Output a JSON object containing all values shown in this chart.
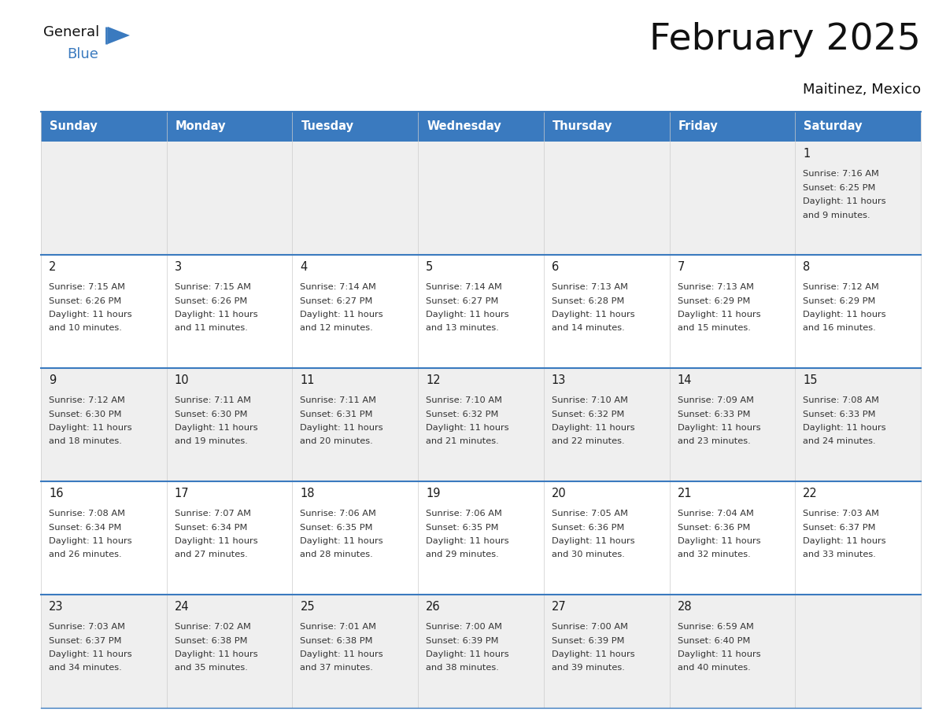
{
  "title": "February 2025",
  "subtitle": "Maitinez, Mexico",
  "header_bg_color": "#3a7abf",
  "header_text_color": "#ffffff",
  "cell_bg_odd": "#efefef",
  "cell_bg_even": "#ffffff",
  "border_color": "#3a7abf",
  "text_color": "#333333",
  "day_num_color": "#1a1a1a",
  "day_headers": [
    "Sunday",
    "Monday",
    "Tuesday",
    "Wednesday",
    "Thursday",
    "Friday",
    "Saturday"
  ],
  "weeks": [
    [
      {
        "day": null,
        "sunrise": null,
        "sunset": null,
        "daylight": null
      },
      {
        "day": null,
        "sunrise": null,
        "sunset": null,
        "daylight": null
      },
      {
        "day": null,
        "sunrise": null,
        "sunset": null,
        "daylight": null
      },
      {
        "day": null,
        "sunrise": null,
        "sunset": null,
        "daylight": null
      },
      {
        "day": null,
        "sunrise": null,
        "sunset": null,
        "daylight": null
      },
      {
        "day": null,
        "sunrise": null,
        "sunset": null,
        "daylight": null
      },
      {
        "day": 1,
        "sunrise": "7:16 AM",
        "sunset": "6:25 PM",
        "daylight": "11 hours and 9 minutes."
      }
    ],
    [
      {
        "day": 2,
        "sunrise": "7:15 AM",
        "sunset": "6:26 PM",
        "daylight": "11 hours and 10 minutes."
      },
      {
        "day": 3,
        "sunrise": "7:15 AM",
        "sunset": "6:26 PM",
        "daylight": "11 hours and 11 minutes."
      },
      {
        "day": 4,
        "sunrise": "7:14 AM",
        "sunset": "6:27 PM",
        "daylight": "11 hours and 12 minutes."
      },
      {
        "day": 5,
        "sunrise": "7:14 AM",
        "sunset": "6:27 PM",
        "daylight": "11 hours and 13 minutes."
      },
      {
        "day": 6,
        "sunrise": "7:13 AM",
        "sunset": "6:28 PM",
        "daylight": "11 hours and 14 minutes."
      },
      {
        "day": 7,
        "sunrise": "7:13 AM",
        "sunset": "6:29 PM",
        "daylight": "11 hours and 15 minutes."
      },
      {
        "day": 8,
        "sunrise": "7:12 AM",
        "sunset": "6:29 PM",
        "daylight": "11 hours and 16 minutes."
      }
    ],
    [
      {
        "day": 9,
        "sunrise": "7:12 AM",
        "sunset": "6:30 PM",
        "daylight": "11 hours and 18 minutes."
      },
      {
        "day": 10,
        "sunrise": "7:11 AM",
        "sunset": "6:30 PM",
        "daylight": "11 hours and 19 minutes."
      },
      {
        "day": 11,
        "sunrise": "7:11 AM",
        "sunset": "6:31 PM",
        "daylight": "11 hours and 20 minutes."
      },
      {
        "day": 12,
        "sunrise": "7:10 AM",
        "sunset": "6:32 PM",
        "daylight": "11 hours and 21 minutes."
      },
      {
        "day": 13,
        "sunrise": "7:10 AM",
        "sunset": "6:32 PM",
        "daylight": "11 hours and 22 minutes."
      },
      {
        "day": 14,
        "sunrise": "7:09 AM",
        "sunset": "6:33 PM",
        "daylight": "11 hours and 23 minutes."
      },
      {
        "day": 15,
        "sunrise": "7:08 AM",
        "sunset": "6:33 PM",
        "daylight": "11 hours and 24 minutes."
      }
    ],
    [
      {
        "day": 16,
        "sunrise": "7:08 AM",
        "sunset": "6:34 PM",
        "daylight": "11 hours and 26 minutes."
      },
      {
        "day": 17,
        "sunrise": "7:07 AM",
        "sunset": "6:34 PM",
        "daylight": "11 hours and 27 minutes."
      },
      {
        "day": 18,
        "sunrise": "7:06 AM",
        "sunset": "6:35 PM",
        "daylight": "11 hours and 28 minutes."
      },
      {
        "day": 19,
        "sunrise": "7:06 AM",
        "sunset": "6:35 PM",
        "daylight": "11 hours and 29 minutes."
      },
      {
        "day": 20,
        "sunrise": "7:05 AM",
        "sunset": "6:36 PM",
        "daylight": "11 hours and 30 minutes."
      },
      {
        "day": 21,
        "sunrise": "7:04 AM",
        "sunset": "6:36 PM",
        "daylight": "11 hours and 32 minutes."
      },
      {
        "day": 22,
        "sunrise": "7:03 AM",
        "sunset": "6:37 PM",
        "daylight": "11 hours and 33 minutes."
      }
    ],
    [
      {
        "day": 23,
        "sunrise": "7:03 AM",
        "sunset": "6:37 PM",
        "daylight": "11 hours and 34 minutes."
      },
      {
        "day": 24,
        "sunrise": "7:02 AM",
        "sunset": "6:38 PM",
        "daylight": "11 hours and 35 minutes."
      },
      {
        "day": 25,
        "sunrise": "7:01 AM",
        "sunset": "6:38 PM",
        "daylight": "11 hours and 37 minutes."
      },
      {
        "day": 26,
        "sunrise": "7:00 AM",
        "sunset": "6:39 PM",
        "daylight": "11 hours and 38 minutes."
      },
      {
        "day": 27,
        "sunrise": "7:00 AM",
        "sunset": "6:39 PM",
        "daylight": "11 hours and 39 minutes."
      },
      {
        "day": 28,
        "sunrise": "6:59 AM",
        "sunset": "6:40 PM",
        "daylight": "11 hours and 40 minutes."
      },
      {
        "day": null,
        "sunrise": null,
        "sunset": null,
        "daylight": null
      }
    ]
  ]
}
